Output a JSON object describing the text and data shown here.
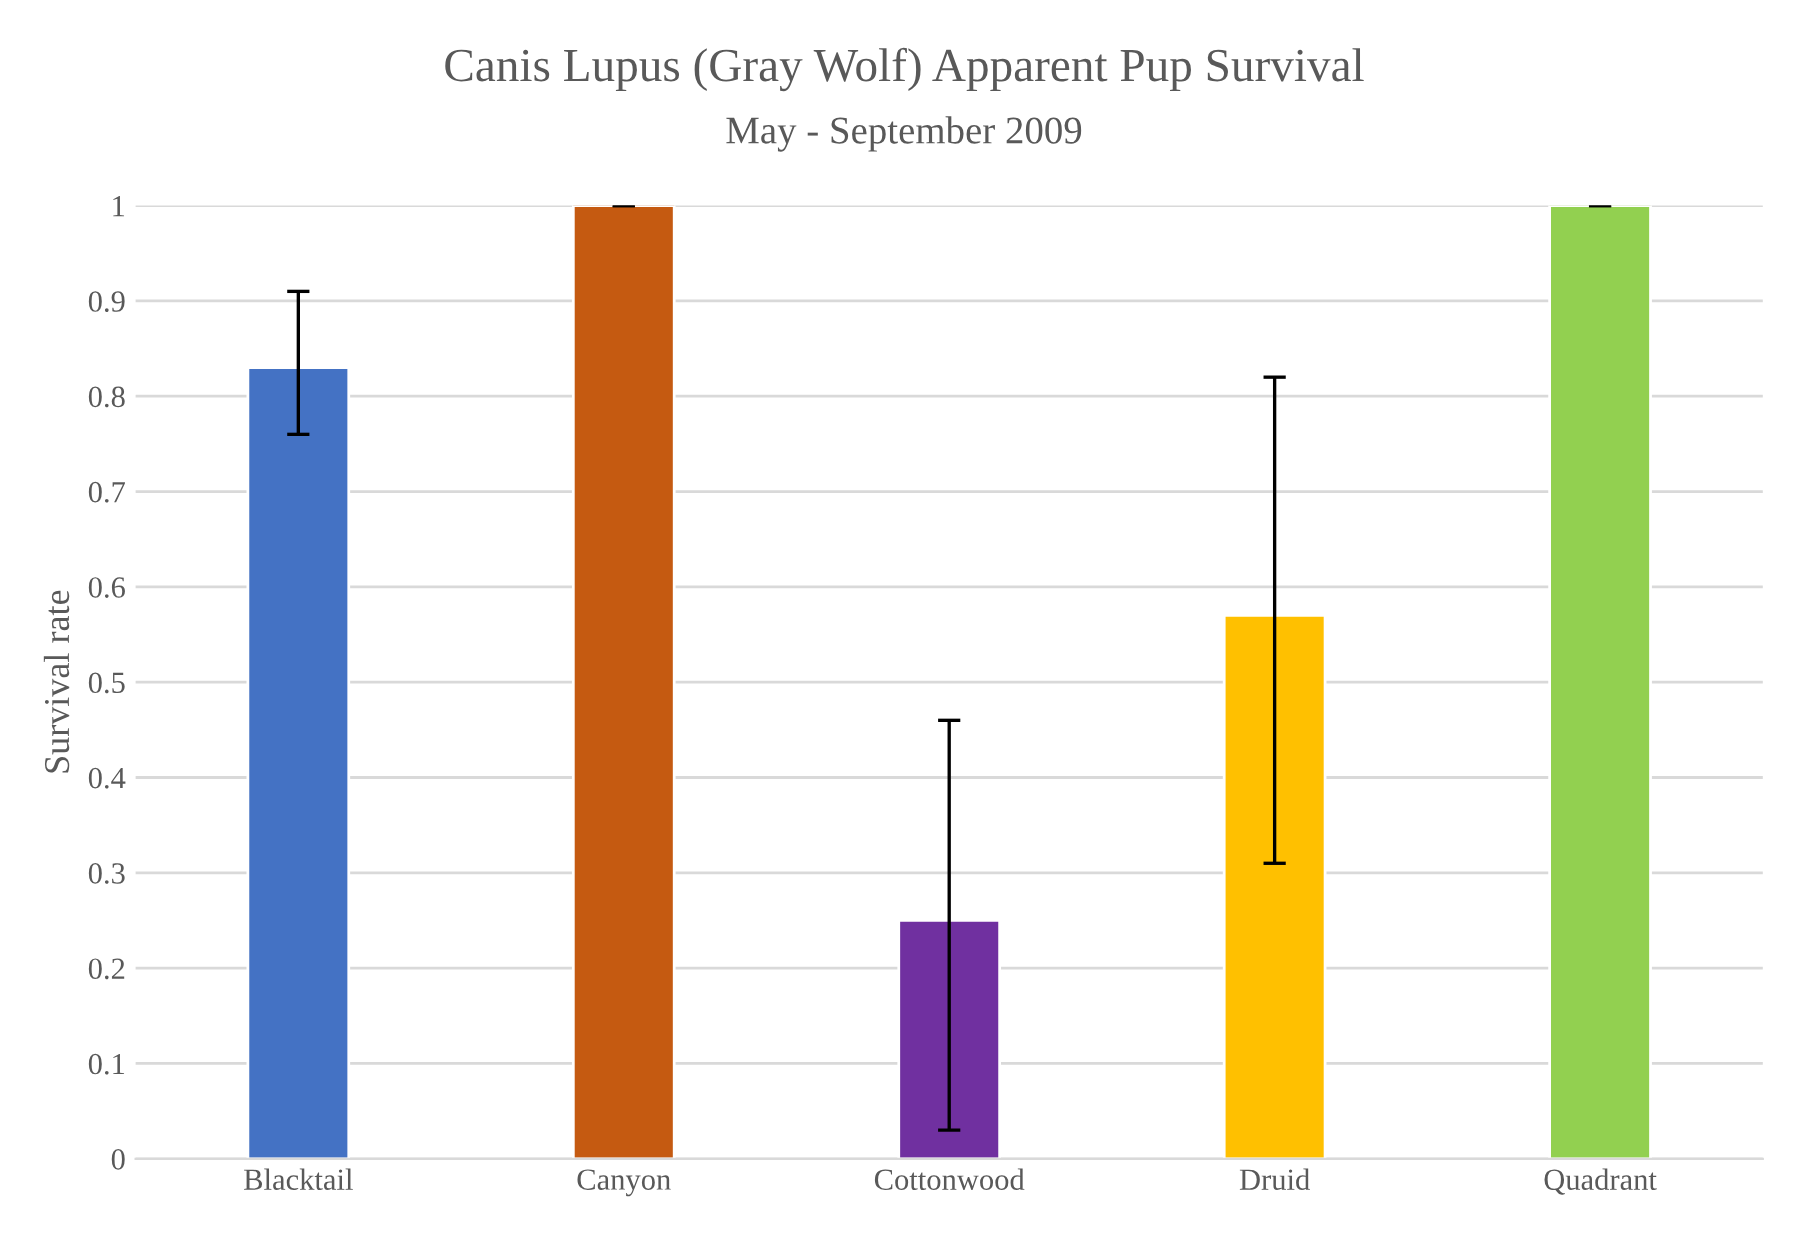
{
  "chart_data": {
    "type": "bar",
    "title": "Canis Lupus (Gray Wolf) Apparent Pup Survival",
    "subtitle": "May - September 2009",
    "ylabel": "Survival rate",
    "categories": [
      "Blacktail",
      "Canyon",
      "Cottonwood",
      "Druid",
      "Quadrant"
    ],
    "values": [
      0.83,
      1,
      0.25,
      0.57,
      1
    ],
    "colors": [
      "#4472c4",
      "#c55a11",
      "#7030a0",
      "#ffc000",
      "#92d050"
    ],
    "errors": [
      [
        0.76,
        0.91
      ],
      [
        1,
        1
      ],
      [
        0.03,
        0.46
      ],
      [
        0.31,
        0.82
      ],
      [
        1,
        1
      ]
    ],
    "ylim": [
      0,
      1
    ],
    "yticks": [
      0,
      0.1,
      0.2,
      0.3,
      0.4,
      0.5,
      0.6,
      0.7,
      0.8,
      0.9,
      1
    ],
    "grid": "y"
  }
}
